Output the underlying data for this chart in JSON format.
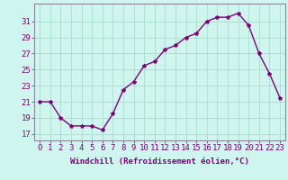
{
  "x": [
    0,
    1,
    2,
    3,
    4,
    5,
    6,
    7,
    8,
    9,
    10,
    11,
    12,
    13,
    14,
    15,
    16,
    17,
    18,
    19,
    20,
    21,
    22,
    23
  ],
  "y": [
    21,
    21,
    19,
    18,
    18,
    18,
    17.5,
    19.5,
    22.5,
    23.5,
    25.5,
    26,
    27.5,
    28,
    29,
    29.5,
    31,
    31.5,
    31.5,
    32,
    30.5,
    27,
    24.5,
    21.5
  ],
  "line_color": "#800080",
  "marker": "*",
  "marker_size": 3,
  "bg_color": "#cef5ee",
  "grid_color": "#aaddcc",
  "xlabel": "Windchill (Refroidissement éolien,°C)",
  "xlabel_fontsize": 6.5,
  "xtick_labels": [
    "0",
    "1",
    "2",
    "3",
    "4",
    "5",
    "6",
    "7",
    "8",
    "9",
    "10",
    "11",
    "12",
    "13",
    "14",
    "15",
    "16",
    "17",
    "18",
    "19",
    "20",
    "21",
    "22",
    "23"
  ],
  "ytick_values": [
    17,
    19,
    21,
    23,
    25,
    27,
    29,
    31
  ],
  "ylim": [
    16.2,
    33.2
  ],
  "xlim": [
    -0.5,
    23.5
  ],
  "tick_fontsize": 6.5,
  "line_width": 1.0
}
